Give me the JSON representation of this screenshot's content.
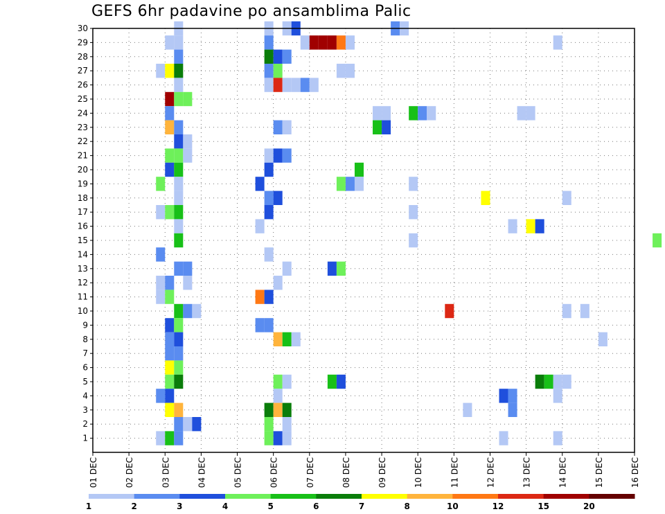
{
  "chart_data": {
    "type": "heatmap",
    "title": "GEFS 6hr padavine po ansamblima Palic",
    "xlabel": "",
    "ylabel": "",
    "x_ticks": [
      "01 DEC",
      "02 DEC",
      "03 DEC",
      "04 DEC",
      "05 DEC",
      "06 DEC",
      "07 DEC",
      "08 DEC",
      "09 DEC",
      "10 DEC",
      "11 DEC",
      "12 DEC",
      "13 DEC",
      "14 DEC",
      "15 DEC",
      "16 DEC"
    ],
    "y_ticks": [
      1,
      2,
      3,
      4,
      5,
      6,
      7,
      8,
      9,
      10,
      11,
      12,
      13,
      14,
      15,
      16,
      17,
      18,
      19,
      20,
      21,
      22,
      23,
      24,
      25,
      26,
      27,
      28,
      29,
      30
    ],
    "xlim_days": [
      1,
      16
    ],
    "ylim_members": [
      0,
      30
    ],
    "time_step_hours": 6,
    "grid": "dotted",
    "legend": {
      "placement": "bottom",
      "levels": [
        "1",
        "2",
        "3",
        "4",
        "5",
        "6",
        "7",
        "8",
        "10",
        "12",
        "15",
        "20"
      ],
      "colors": [
        "#b4c8f5",
        "#5a8cf0",
        "#1f4fdc",
        "#6ef05a",
        "#18c018",
        "#0a7d0a",
        "#ffff00",
        "#ffb43c",
        "#ff7814",
        "#dc2814",
        "#a00000",
        "#640000"
      ]
    },
    "cells_format": "[day (1 = 01 DEC 00z), member, color class 0-11]",
    "cells": [
      [
        3.25,
        30,
        0
      ],
      [
        5.75,
        30,
        0
      ],
      [
        6.25,
        30,
        0
      ],
      [
        6.5,
        30,
        2
      ],
      [
        9.25,
        30,
        1
      ],
      [
        9.5,
        30,
        0
      ],
      [
        3.0,
        29,
        0
      ],
      [
        3.25,
        29,
        0
      ],
      [
        5.75,
        29,
        1
      ],
      [
        6.75,
        29,
        0
      ],
      [
        7.0,
        29,
        10
      ],
      [
        7.25,
        29,
        10
      ],
      [
        7.5,
        29,
        10
      ],
      [
        7.75,
        29,
        8
      ],
      [
        8.0,
        29,
        0
      ],
      [
        13.75,
        29,
        0
      ],
      [
        3.25,
        28,
        1
      ],
      [
        5.75,
        28,
        5
      ],
      [
        6.0,
        28,
        2
      ],
      [
        6.25,
        28,
        1
      ],
      [
        2.75,
        27,
        0
      ],
      [
        3.0,
        27,
        6
      ],
      [
        3.25,
        27,
        5
      ],
      [
        5.75,
        27,
        1
      ],
      [
        6.0,
        27,
        3
      ],
      [
        7.75,
        27,
        0
      ],
      [
        8.0,
        27,
        0
      ],
      [
        3.25,
        26,
        0
      ],
      [
        5.75,
        26,
        0
      ],
      [
        6.0,
        26,
        9
      ],
      [
        6.25,
        26,
        0
      ],
      [
        6.5,
        26,
        0
      ],
      [
        6.75,
        26,
        1
      ],
      [
        7.0,
        26,
        0
      ],
      [
        3.0,
        25,
        10
      ],
      [
        3.25,
        25,
        3
      ],
      [
        3.5,
        25,
        3
      ],
      [
        3.0,
        24,
        1
      ],
      [
        8.75,
        24,
        0
      ],
      [
        9.0,
        24,
        0
      ],
      [
        9.75,
        24,
        4
      ],
      [
        10.0,
        24,
        1
      ],
      [
        10.25,
        24,
        0
      ],
      [
        12.75,
        24,
        0
      ],
      [
        13.0,
        24,
        0
      ],
      [
        3.0,
        23,
        7
      ],
      [
        3.25,
        23,
        1
      ],
      [
        6.0,
        23,
        1
      ],
      [
        6.25,
        23,
        0
      ],
      [
        8.75,
        23,
        4
      ],
      [
        9.0,
        23,
        2
      ],
      [
        3.25,
        22,
        2
      ],
      [
        3.5,
        22,
        0
      ],
      [
        3.0,
        21,
        3
      ],
      [
        3.25,
        21,
        3
      ],
      [
        3.5,
        21,
        0
      ],
      [
        5.75,
        21,
        0
      ],
      [
        6.0,
        21,
        2
      ],
      [
        6.25,
        21,
        1
      ],
      [
        3.0,
        20,
        2
      ],
      [
        3.25,
        20,
        4
      ],
      [
        5.75,
        20,
        2
      ],
      [
        8.25,
        20,
        4
      ],
      [
        2.75,
        19,
        3
      ],
      [
        3.25,
        19,
        0
      ],
      [
        5.5,
        19,
        2
      ],
      [
        7.75,
        19,
        3
      ],
      [
        8.0,
        19,
        1
      ],
      [
        8.25,
        19,
        0
      ],
      [
        9.75,
        19,
        0
      ],
      [
        3.25,
        18,
        0
      ],
      [
        5.75,
        18,
        1
      ],
      [
        6.0,
        18,
        2
      ],
      [
        11.75,
        18,
        6
      ],
      [
        14.0,
        18,
        0
      ],
      [
        2.75,
        17,
        0
      ],
      [
        3.0,
        17,
        3
      ],
      [
        3.25,
        17,
        4
      ],
      [
        5.75,
        17,
        2
      ],
      [
        9.75,
        17,
        0
      ],
      [
        3.25,
        16,
        0
      ],
      [
        5.5,
        16,
        0
      ],
      [
        12.5,
        16,
        0
      ],
      [
        13.0,
        16,
        6
      ],
      [
        13.25,
        16,
        2
      ],
      [
        3.25,
        15,
        4
      ],
      [
        9.75,
        15,
        0
      ],
      [
        16.5,
        15,
        3
      ],
      [
        2.75,
        14,
        1
      ],
      [
        5.75,
        14,
        0
      ],
      [
        3.25,
        13,
        1
      ],
      [
        3.5,
        13,
        1
      ],
      [
        6.25,
        13,
        0
      ],
      [
        7.5,
        13,
        2
      ],
      [
        7.75,
        13,
        3
      ],
      [
        2.75,
        12,
        0
      ],
      [
        3.0,
        12,
        1
      ],
      [
        3.5,
        12,
        0
      ],
      [
        6.0,
        12,
        0
      ],
      [
        2.75,
        11,
        0
      ],
      [
        3.0,
        11,
        3
      ],
      [
        5.5,
        11,
        8
      ],
      [
        5.75,
        11,
        2
      ],
      [
        3.25,
        10,
        4
      ],
      [
        3.5,
        10,
        1
      ],
      [
        3.75,
        10,
        0
      ],
      [
        10.75,
        10,
        9
      ],
      [
        14.0,
        10,
        0
      ],
      [
        14.5,
        10,
        0
      ],
      [
        3.0,
        9,
        2
      ],
      [
        3.25,
        9,
        3
      ],
      [
        5.5,
        9,
        1
      ],
      [
        5.75,
        9,
        1
      ],
      [
        3.0,
        8,
        1
      ],
      [
        3.25,
        8,
        2
      ],
      [
        6.0,
        8,
        7
      ],
      [
        6.25,
        8,
        4
      ],
      [
        6.5,
        8,
        0
      ],
      [
        15.0,
        8,
        0
      ],
      [
        3.0,
        7,
        1
      ],
      [
        3.25,
        7,
        1
      ],
      [
        3.0,
        6,
        6
      ],
      [
        3.25,
        6,
        3
      ],
      [
        3.0,
        5,
        3
      ],
      [
        3.25,
        5,
        5
      ],
      [
        6.0,
        5,
        3
      ],
      [
        6.25,
        5,
        0
      ],
      [
        7.5,
        5,
        4
      ],
      [
        7.75,
        5,
        2
      ],
      [
        13.25,
        5,
        5
      ],
      [
        13.5,
        5,
        4
      ],
      [
        13.75,
        5,
        0
      ],
      [
        14.0,
        5,
        0
      ],
      [
        2.75,
        4,
        1
      ],
      [
        3.0,
        4,
        2
      ],
      [
        6.0,
        4,
        0
      ],
      [
        12.25,
        4,
        2
      ],
      [
        12.5,
        4,
        1
      ],
      [
        13.75,
        4,
        0
      ],
      [
        3.0,
        3,
        6
      ],
      [
        3.25,
        3,
        7
      ],
      [
        5.75,
        3,
        5
      ],
      [
        6.0,
        3,
        7
      ],
      [
        6.25,
        3,
        5
      ],
      [
        11.25,
        3,
        0
      ],
      [
        12.5,
        3,
        1
      ],
      [
        3.25,
        2,
        1
      ],
      [
        3.5,
        2,
        0
      ],
      [
        3.75,
        2,
        2
      ],
      [
        5.75,
        2,
        3
      ],
      [
        6.25,
        2,
        0
      ],
      [
        2.75,
        1,
        0
      ],
      [
        3.0,
        1,
        4
      ],
      [
        3.25,
        1,
        1
      ],
      [
        5.75,
        1,
        3
      ],
      [
        6.0,
        1,
        2
      ],
      [
        6.25,
        1,
        0
      ],
      [
        12.25,
        1,
        0
      ],
      [
        13.75,
        1,
        0
      ]
    ]
  }
}
